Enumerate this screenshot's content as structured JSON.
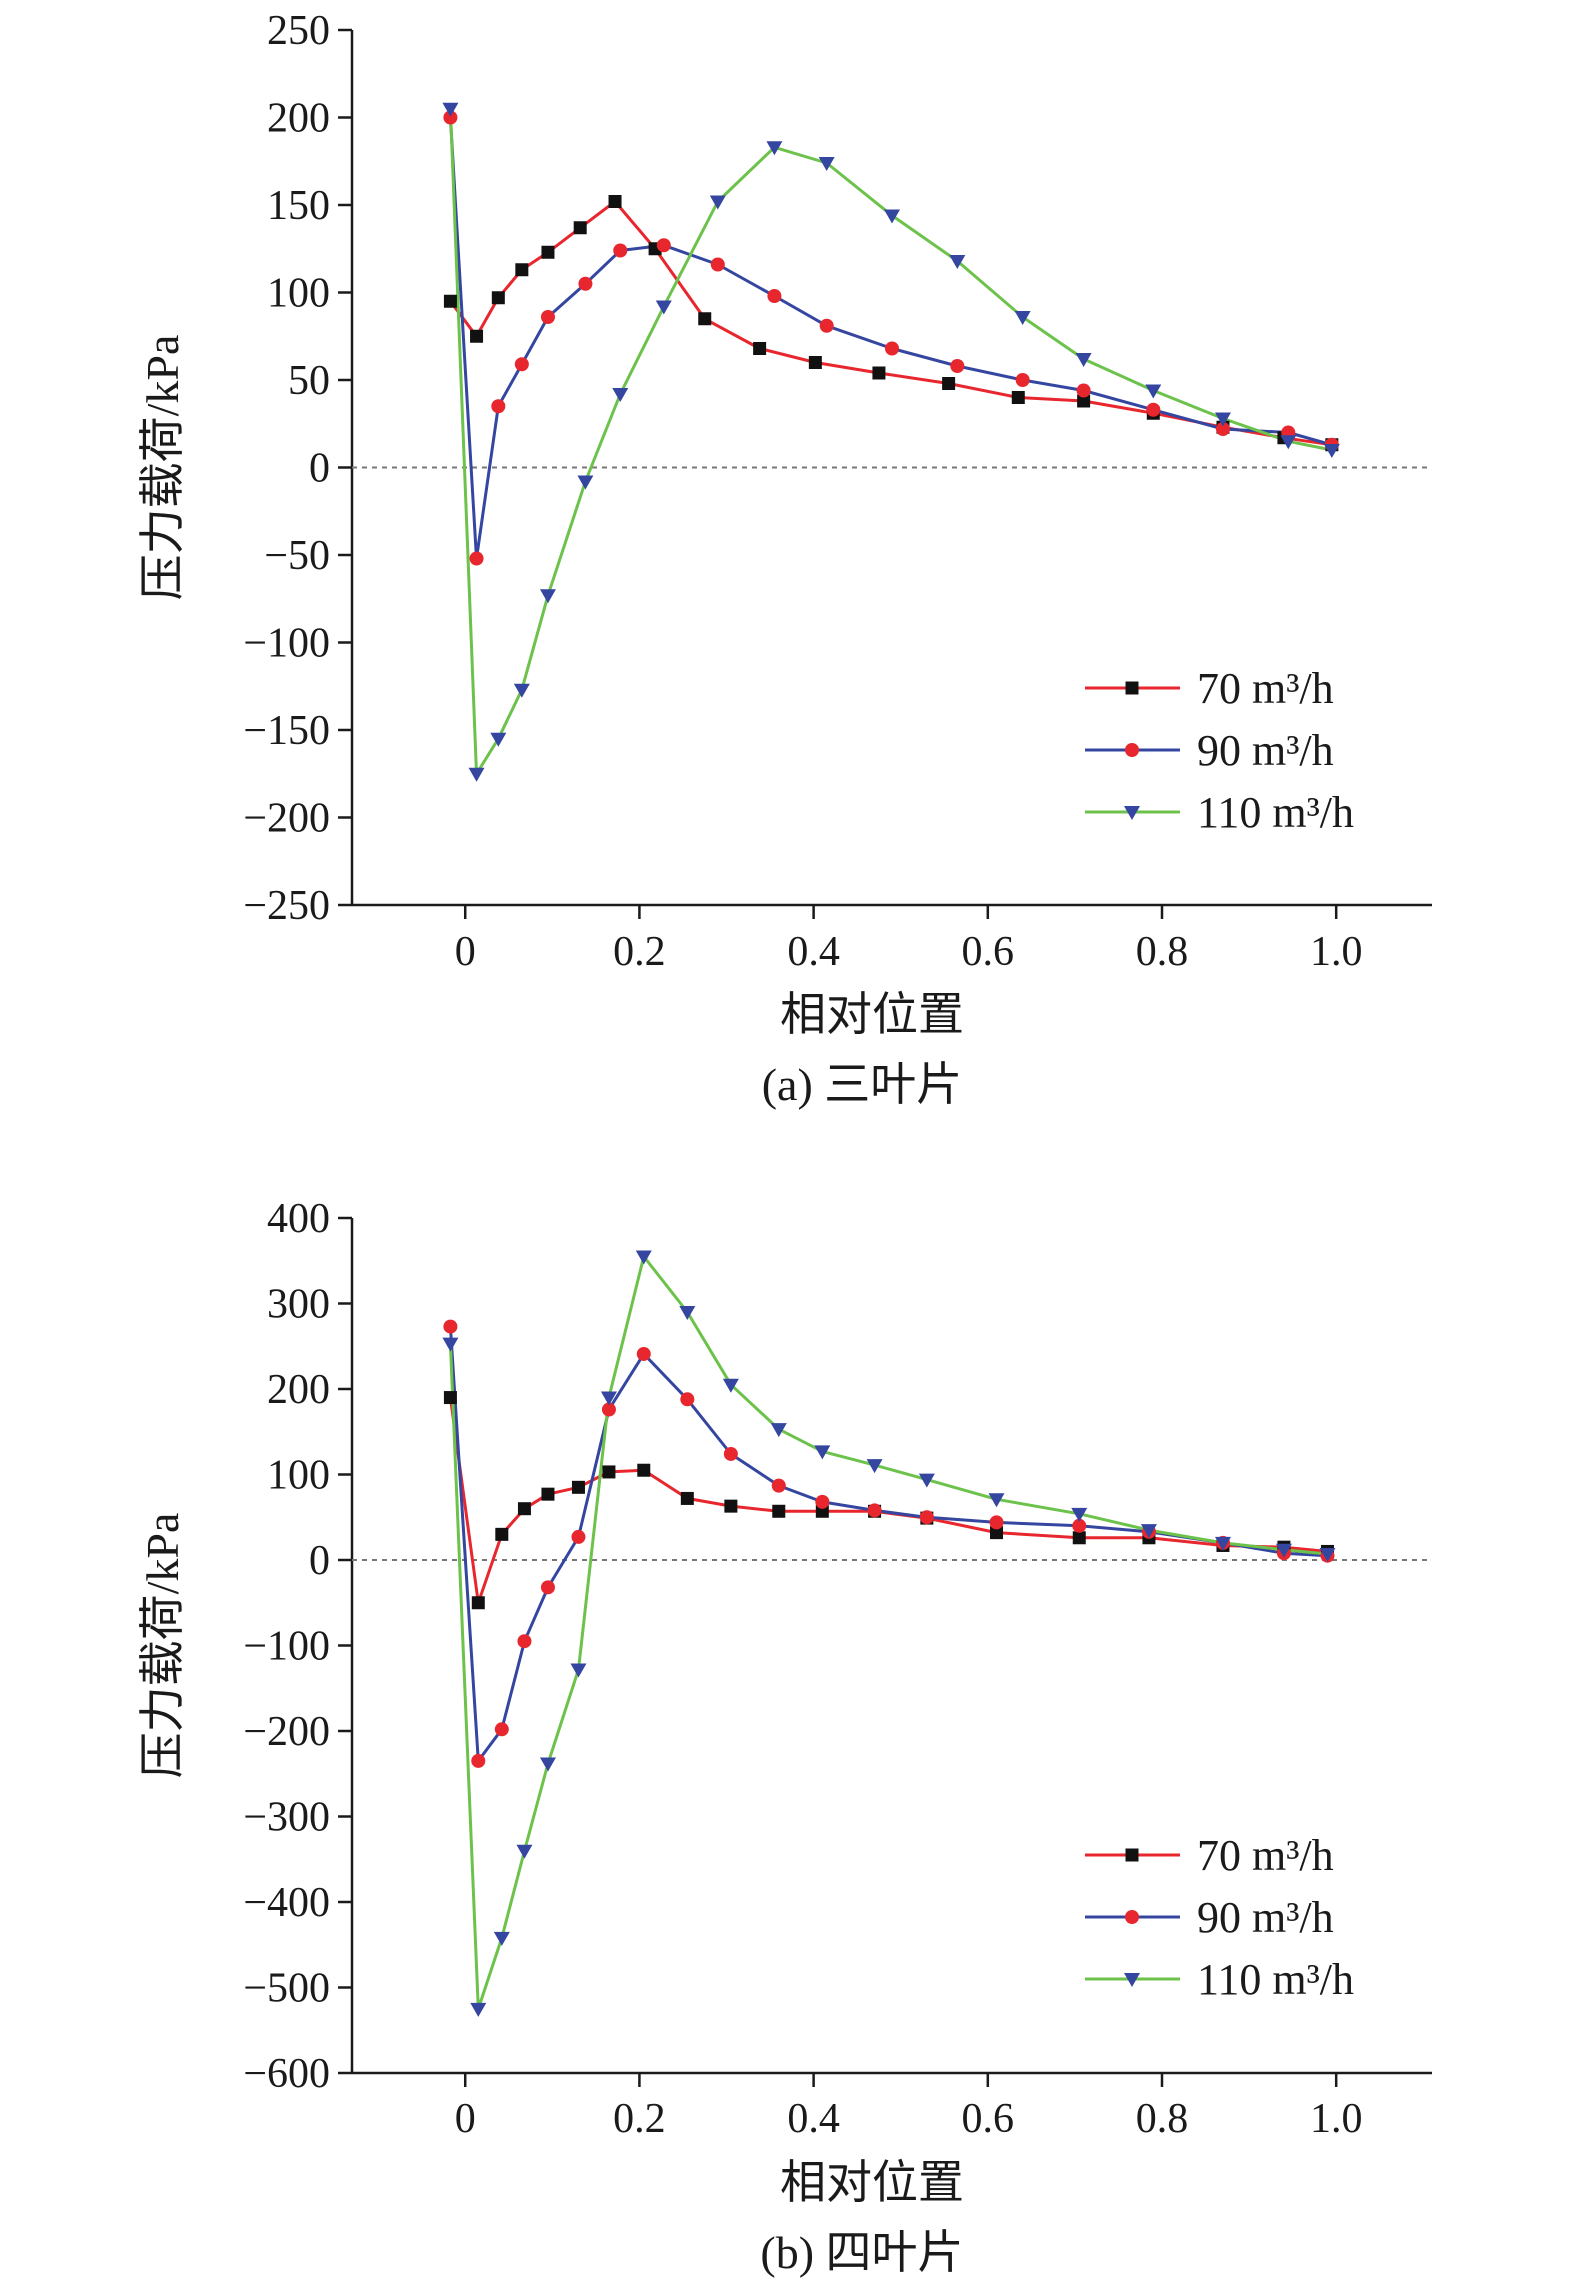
{
  "chart_data": [
    {
      "type": "line",
      "caption": "(a) 三叶片",
      "xlabel": "相对位置",
      "ylabel": "压力载荷/kPa",
      "xlim": [
        -0.13,
        1.11
      ],
      "ylim": [
        -250,
        250
      ],
      "xticks": [
        0,
        0.2,
        0.4,
        0.6,
        0.8,
        1.0
      ],
      "xtick_labels": [
        "0",
        "0.2",
        "0.4",
        "0.6",
        "0.8",
        "1.0"
      ],
      "yticks": [
        -250,
        -200,
        -150,
        -100,
        -50,
        0,
        50,
        100,
        150,
        200,
        250
      ],
      "ytick_labels": [
        "−250",
        "−200",
        "−150",
        "−100",
        "−50",
        "0",
        "50",
        "100",
        "150",
        "200",
        "250"
      ],
      "zero_line": true,
      "legend_position": "lower-right",
      "series": [
        {
          "name": "70 m³/h",
          "color": "#e8262d",
          "marker": "square",
          "marker_color": "#111111",
          "x": [
            -0.017,
            0.013,
            0.038,
            0.065,
            0.095,
            0.132,
            0.172,
            0.218,
            0.275,
            0.338,
            0.402,
            0.475,
            0.555,
            0.635,
            0.71,
            0.79,
            0.87,
            0.94,
            0.995
          ],
          "y": [
            95,
            75,
            97,
            113,
            123,
            137,
            152,
            125,
            85,
            68,
            60,
            54,
            48,
            40,
            38,
            31,
            23,
            17,
            13
          ]
        },
        {
          "name": "90 m³/h",
          "color": "#3446a0",
          "marker": "circle",
          "marker_color": "#e8262d",
          "x": [
            -0.017,
            0.013,
            0.038,
            0.065,
            0.095,
            0.138,
            0.178,
            0.228,
            0.29,
            0.355,
            0.415,
            0.49,
            0.565,
            0.64,
            0.71,
            0.79,
            0.87,
            0.945,
            0.995
          ],
          "y": [
            200,
            -52,
            35,
            59,
            86,
            105,
            124,
            127,
            116,
            98,
            81,
            68,
            58,
            50,
            44,
            33,
            22,
            20,
            13
          ]
        },
        {
          "name": "110 m³/h",
          "color": "#6cc24a",
          "marker": "triangle-down",
          "marker_color": "#3446a0",
          "x": [
            -0.017,
            0.013,
            0.038,
            0.065,
            0.095,
            0.138,
            0.178,
            0.228,
            0.29,
            0.355,
            0.415,
            0.49,
            0.565,
            0.64,
            0.71,
            0.79,
            0.87,
            0.945,
            0.995
          ],
          "y": [
            205,
            -175,
            -155,
            -127,
            -73,
            -8,
            42,
            92,
            152,
            183,
            174,
            144,
            118,
            86,
            62,
            44,
            28,
            15,
            10
          ]
        }
      ]
    },
    {
      "type": "line",
      "caption": "(b) 四叶片",
      "xlabel": "相对位置",
      "ylabel": "压力载荷/kPa",
      "xlim": [
        -0.13,
        1.11
      ],
      "ylim": [
        -600,
        400
      ],
      "xticks": [
        0,
        0.2,
        0.4,
        0.6,
        0.8,
        1.0
      ],
      "xtick_labels": [
        "0",
        "0.2",
        "0.4",
        "0.6",
        "0.8",
        "1.0"
      ],
      "yticks": [
        -600,
        -500,
        -400,
        -300,
        -200,
        -100,
        0,
        100,
        200,
        300,
        400
      ],
      "ytick_labels": [
        "−600",
        "−500",
        "−400",
        "−300",
        "−200",
        "−100",
        "0",
        "100",
        "200",
        "300",
        "400"
      ],
      "zero_line": true,
      "legend_position": "lower-right",
      "series": [
        {
          "name": "70 m³/h",
          "color": "#e8262d",
          "marker": "square",
          "marker_color": "#111111",
          "x": [
            -0.017,
            0.015,
            0.042,
            0.068,
            0.095,
            0.13,
            0.165,
            0.205,
            0.255,
            0.305,
            0.36,
            0.41,
            0.47,
            0.53,
            0.61,
            0.705,
            0.785,
            0.87,
            0.94,
            0.99
          ],
          "y": [
            190,
            -50,
            30,
            60,
            77,
            85,
            103,
            105,
            72,
            63,
            57,
            57,
            57,
            49,
            32,
            26,
            26,
            17,
            15,
            10
          ]
        },
        {
          "name": "90 m³/h",
          "color": "#3446a0",
          "marker": "circle",
          "marker_color": "#e8262d",
          "x": [
            -0.017,
            0.015,
            0.042,
            0.068,
            0.095,
            0.13,
            0.165,
            0.205,
            0.255,
            0.305,
            0.36,
            0.41,
            0.47,
            0.53,
            0.61,
            0.705,
            0.785,
            0.87,
            0.94,
            0.99
          ],
          "y": [
            273,
            -235,
            -198,
            -95,
            -32,
            27,
            176,
            241,
            188,
            124,
            87,
            68,
            58,
            50,
            44,
            40,
            33,
            20,
            8,
            5
          ]
        },
        {
          "name": "110 m³/h",
          "color": "#6cc24a",
          "marker": "triangle-down",
          "marker_color": "#3446a0",
          "x": [
            -0.017,
            0.015,
            0.042,
            0.068,
            0.095,
            0.13,
            0.165,
            0.205,
            0.255,
            0.305,
            0.36,
            0.41,
            0.47,
            0.53,
            0.61,
            0.705,
            0.785,
            0.87,
            0.94,
            0.99
          ],
          "y": [
            253,
            -525,
            -442,
            -340,
            -238,
            -128,
            190,
            355,
            290,
            205,
            153,
            127,
            111,
            94,
            71,
            54,
            35,
            20,
            12,
            7
          ]
        }
      ]
    }
  ]
}
